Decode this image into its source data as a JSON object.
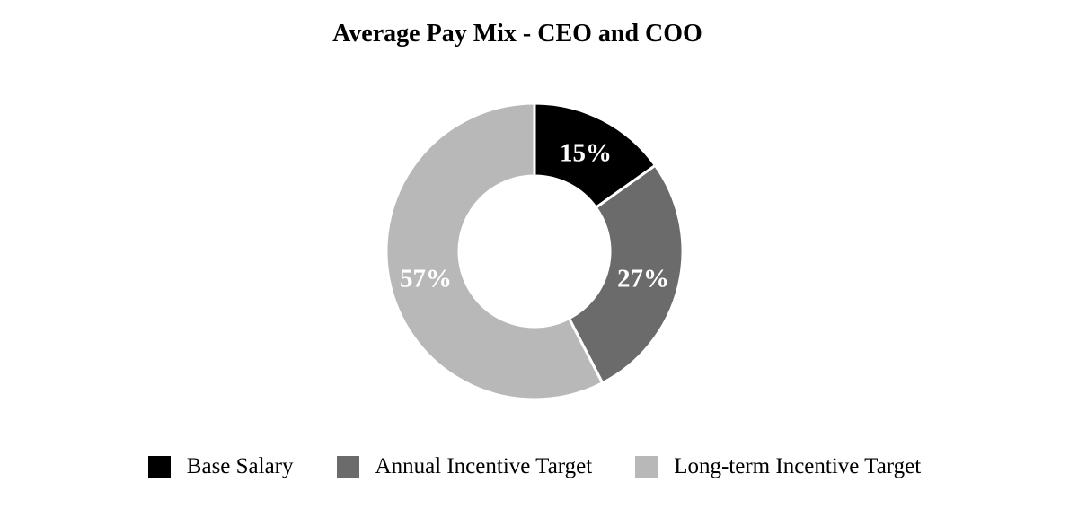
{
  "chart_data": {
    "type": "pie",
    "subtype": "donut",
    "title": "Average Pay Mix - CEO and COO",
    "slices": [
      {
        "label": "Base Salary",
        "value": 15,
        "display": "15%",
        "color": "#000000"
      },
      {
        "label": "Annual Incentive Target",
        "value": 27,
        "display": "27%",
        "color": "#6b6b6b"
      },
      {
        "label": "Long-term Incentive Target",
        "value": 57,
        "display": "57%",
        "color": "#b8b8b8"
      }
    ],
    "start_angle_deg": 0,
    "direction": "clockwise",
    "inner_radius_ratio": 0.5,
    "separator_color": "#ffffff",
    "slice_label_color": "#ffffff",
    "background_color": "#ffffff",
    "legend_position": "bottom"
  }
}
